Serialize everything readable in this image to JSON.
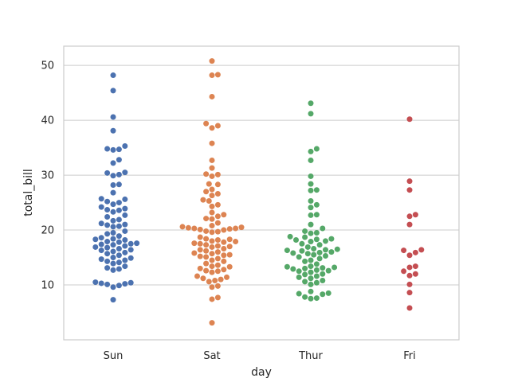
{
  "chart_data": {
    "type": "scatter",
    "subtype": "swarm",
    "title": "",
    "xlabel": "day",
    "ylabel": "total_bill",
    "ylim": [
      0,
      53.5
    ],
    "yticks": [
      10,
      20,
      30,
      40,
      50
    ],
    "grid": "horizontal",
    "categories": [
      "Sun",
      "Sat",
      "Thur",
      "Fri"
    ],
    "series": [
      {
        "name": "Sun",
        "color": "#4c72b0",
        "values": [
          48.2,
          45.4,
          40.6,
          38.1,
          35.3,
          34.8,
          34.7,
          34.6,
          32.8,
          32.2,
          30.5,
          30.4,
          30.1,
          29.9,
          28.3,
          28.2,
          26.8,
          25.7,
          25.6,
          25.2,
          25.0,
          24.7,
          24.2,
          23.9,
          23.7,
          23.6,
          23.3,
          22.7,
          22.4,
          21.9,
          21.7,
          21.2,
          21.0,
          20.9,
          20.7,
          20.6,
          19.8,
          19.5,
          19.3,
          18.9,
          18.6,
          18.4,
          18.3,
          18.2,
          17.9,
          17.8,
          17.6,
          17.5,
          17.4,
          17.3,
          17.1,
          16.9,
          16.8,
          16.6,
          16.4,
          16.3,
          16.1,
          15.9,
          15.7,
          15.4,
          15.0,
          14.9,
          14.7,
          14.5,
          14.3,
          14.1,
          13.9,
          13.4,
          13.1,
          12.9,
          12.7,
          10.5,
          10.4,
          10.3,
          10.2,
          10.1,
          9.9,
          9.6,
          7.3
        ]
      },
      {
        "name": "Sat",
        "color": "#dd8452",
        "values": [
          50.8,
          48.3,
          48.2,
          44.3,
          39.4,
          39.0,
          38.6,
          35.8,
          32.7,
          31.3,
          30.2,
          30.1,
          29.8,
          28.4,
          28.3,
          27.4,
          27.0,
          26.6,
          26.3,
          25.5,
          25.3,
          24.6,
          24.3,
          23.2,
          22.8,
          22.5,
          22.1,
          22.0,
          21.3,
          20.8,
          20.6,
          20.5,
          20.4,
          20.3,
          20.3,
          20.2,
          20.1,
          20.0,
          19.8,
          19.7,
          19.6,
          18.7,
          18.4,
          18.3,
          18.2,
          18.0,
          17.9,
          17.8,
          17.6,
          17.5,
          17.3,
          17.1,
          17.0,
          16.9,
          16.6,
          16.4,
          16.2,
          16.0,
          15.8,
          15.7,
          15.5,
          15.4,
          15.2,
          15.1,
          14.8,
          14.5,
          14.3,
          13.9,
          13.6,
          13.4,
          13.3,
          13.0,
          12.8,
          12.6,
          12.5,
          12.3,
          11.6,
          11.4,
          11.2,
          11.0,
          10.8,
          10.6,
          9.8,
          9.6,
          7.7,
          7.4,
          3.1
        ]
      },
      {
        "name": "Thur",
        "color": "#55a868",
        "values": [
          43.1,
          41.2,
          34.8,
          34.3,
          32.7,
          29.8,
          28.4,
          27.3,
          27.2,
          25.3,
          24.6,
          24.1,
          22.8,
          22.7,
          21.0,
          20.3,
          19.8,
          19.5,
          19.4,
          18.8,
          18.7,
          18.4,
          18.3,
          18.2,
          18.0,
          17.9,
          17.5,
          17.3,
          16.9,
          16.6,
          16.5,
          16.4,
          16.3,
          16.2,
          16.0,
          15.9,
          15.8,
          15.7,
          15.5,
          15.3,
          15.1,
          14.8,
          14.5,
          14.3,
          13.8,
          13.4,
          13.3,
          13.2,
          13.1,
          13.0,
          12.9,
          12.7,
          12.6,
          12.5,
          12.3,
          12.0,
          11.9,
          11.6,
          11.4,
          11.2,
          10.8,
          10.6,
          10.4,
          10.1,
          8.8,
          8.5,
          8.4,
          8.3,
          7.8,
          7.6,
          7.5
        ]
      },
      {
        "name": "Fri",
        "color": "#c44e52",
        "values": [
          40.2,
          28.9,
          27.3,
          22.8,
          22.5,
          21.0,
          16.4,
          16.3,
          15.9,
          15.4,
          13.4,
          13.2,
          12.5,
          12.0,
          11.7,
          10.1,
          8.6,
          5.8
        ]
      }
    ]
  }
}
